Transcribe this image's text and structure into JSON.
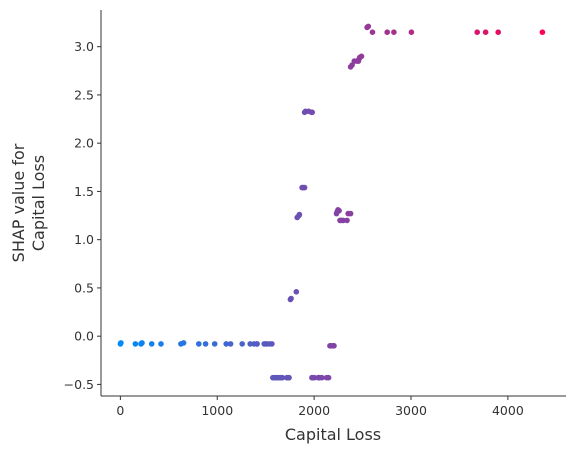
{
  "chart_data": {
    "type": "scatter",
    "title": "",
    "xlabel": "Capital Loss",
    "ylabel_lines": [
      "SHAP value for",
      "Capital Loss"
    ],
    "xlim": [
      -200,
      4600
    ],
    "ylim": [
      -0.62,
      3.38
    ],
    "x_ticks": [
      0,
      1000,
      2000,
      3000,
      4000
    ],
    "y_ticks": [
      -0.5,
      0.0,
      0.5,
      1.0,
      1.5,
      2.0,
      2.5,
      3.0
    ],
    "y_tick_labels": [
      "−0.5",
      "0.0",
      "0.5",
      "1.0",
      "1.5",
      "2.0",
      "2.5",
      "3.0"
    ],
    "grid": false,
    "color_scale": {
      "low": "#008afb",
      "high": "#ff0052",
      "min_x": 0,
      "max_x": 4356
    },
    "points": [
      [
        0,
        -0.08
      ],
      [
        5,
        -0.07
      ],
      [
        155,
        -0.08
      ],
      [
        213,
        -0.08
      ],
      [
        223,
        -0.07
      ],
      [
        323,
        -0.08
      ],
      [
        419,
        -0.08
      ],
      [
        625,
        -0.08
      ],
      [
        653,
        -0.07
      ],
      [
        810,
        -0.08
      ],
      [
        880,
        -0.08
      ],
      [
        974,
        -0.08
      ],
      [
        1092,
        -0.08
      ],
      [
        1138,
        -0.08
      ],
      [
        1258,
        -0.08
      ],
      [
        1340,
        -0.08
      ],
      [
        1380,
        -0.08
      ],
      [
        1408,
        -0.08
      ],
      [
        1411,
        -0.08
      ],
      [
        1485,
        -0.08
      ],
      [
        1504,
        -0.08
      ],
      [
        1510,
        -0.08
      ],
      [
        1539,
        -0.08
      ],
      [
        1564,
        -0.08
      ],
      [
        1573,
        -0.43
      ],
      [
        1590,
        -0.43
      ],
      [
        1594,
        -0.43
      ],
      [
        1602,
        -0.43
      ],
      [
        1617,
        -0.43
      ],
      [
        1628,
        -0.43
      ],
      [
        1648,
        -0.43
      ],
      [
        1651,
        -0.43
      ],
      [
        1668,
        -0.43
      ],
      [
        1672,
        -0.43
      ],
      [
        1719,
        -0.43
      ],
      [
        1721,
        -0.43
      ],
      [
        1740,
        -0.43
      ],
      [
        1741,
        -0.43
      ],
      [
        1755,
        0.38
      ],
      [
        1762,
        0.39
      ],
      [
        1816,
        0.46
      ],
      [
        1825,
        1.23
      ],
      [
        1844,
        1.25
      ],
      [
        1848,
        1.26
      ],
      [
        1876,
        1.54
      ],
      [
        1887,
        1.54
      ],
      [
        1902,
        1.54
      ],
      [
        1902,
        2.32
      ],
      [
        1911,
        2.33
      ],
      [
        1944,
        2.33
      ],
      [
        1974,
        2.32
      ],
      [
        1977,
        2.32
      ],
      [
        1980,
        2.32
      ],
      [
        1977,
        -0.43
      ],
      [
        1980,
        -0.43
      ],
      [
        2001,
        -0.43
      ],
      [
        2002,
        -0.43
      ],
      [
        2042,
        -0.43
      ],
      [
        2051,
        -0.43
      ],
      [
        2057,
        -0.43
      ],
      [
        2080,
        -0.43
      ],
      [
        2129,
        -0.43
      ],
      [
        2149,
        -0.43
      ],
      [
        2163,
        -0.1
      ],
      [
        2174,
        -0.1
      ],
      [
        2179,
        -0.1
      ],
      [
        2201,
        -0.1
      ],
      [
        2205,
        -0.1
      ],
      [
        2231,
        1.27
      ],
      [
        2238,
        1.29
      ],
      [
        2246,
        1.31
      ],
      [
        2258,
        1.3
      ],
      [
        2267,
        1.2
      ],
      [
        2282,
        1.2
      ],
      [
        2301,
        1.2
      ],
      [
        2339,
        1.2
      ],
      [
        2352,
        1.27
      ],
      [
        2377,
        1.27
      ],
      [
        2377,
        2.79
      ],
      [
        2392,
        2.81
      ],
      [
        2415,
        2.85
      ],
      [
        2444,
        2.85
      ],
      [
        2457,
        2.85
      ],
      [
        2467,
        2.88
      ],
      [
        2472,
        2.89
      ],
      [
        2489,
        2.9
      ],
      [
        2547,
        3.2
      ],
      [
        2559,
        3.21
      ],
      [
        2603,
        3.15
      ],
      [
        2754,
        3.15
      ],
      [
        2824,
        3.15
      ],
      [
        3004,
        3.15
      ],
      [
        3683,
        3.15
      ],
      [
        3770,
        3.15
      ],
      [
        3900,
        3.15
      ],
      [
        4356,
        3.15
      ]
    ]
  }
}
